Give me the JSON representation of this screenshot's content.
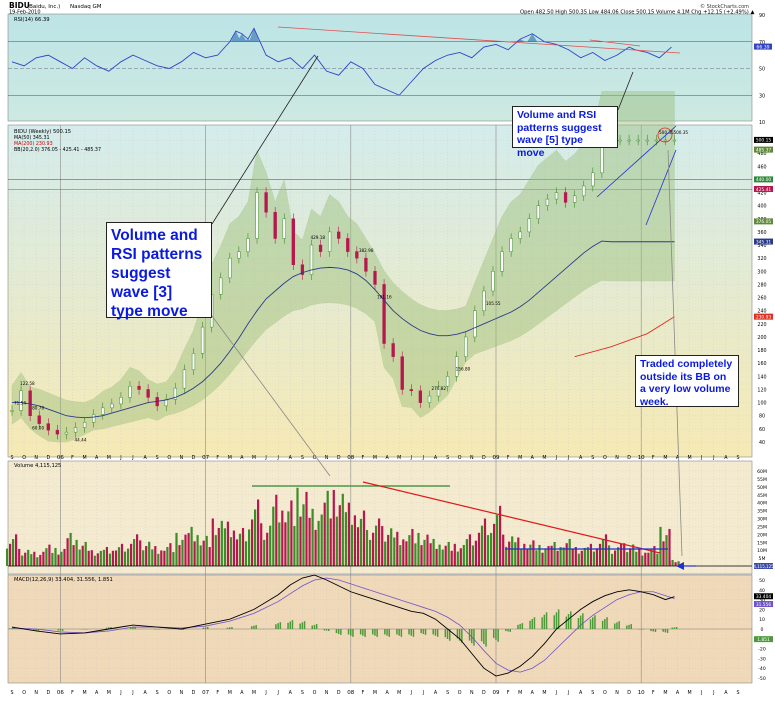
{
  "header": {
    "symbol": "BIDU",
    "company": "(Baidu, Inc.)",
    "exchange": "Nasdaq GM",
    "date": "19-Feb-2010",
    "quote": "Open 482.50  High 500.35  Low 484.06  Close 500.15  Volume 4.1M  Chg +12.15 (+2.49%) ▲",
    "watermark": "© StockCharts.com"
  },
  "colors": {
    "rsi_bg": "#b9e2e4",
    "price_bg_top": "#d4ecec",
    "price_bg_bottom": "#f6e9b4",
    "vol_bg": "#f3ead0",
    "macd_bg": "#f0d9b9",
    "up": "#3c8c28",
    "down": "#b6184e",
    "annotation_text": "#0a1adf"
  },
  "annotations": {
    "wave5": "Volume and RSI patterns suggest wave [5] type move",
    "wave3": "Volume and RSI patterns suggest wave [3] type move",
    "bb": "Traded completely outside its BB on a very low volume week."
  },
  "chart_data": [
    {
      "type": "line",
      "panel": "rsi",
      "legend": "RSI(14) 66.39",
      "y_ticks": [
        90,
        70,
        50,
        30,
        10
      ],
      "levels": [
        70,
        30
      ],
      "last_value_label": "66.39",
      "x_weeks": [
        0,
        4,
        8,
        12,
        16,
        20,
        24,
        28,
        32,
        36,
        40,
        44,
        48,
        52,
        56,
        60,
        64,
        68,
        72,
        74,
        76,
        78,
        80,
        84,
        88,
        92,
        96,
        100,
        104,
        108,
        112,
        116,
        120,
        124,
        128,
        132,
        136,
        140,
        144,
        148,
        152,
        156,
        160,
        164,
        168,
        172,
        176,
        180,
        184,
        188,
        192,
        196,
        200,
        204,
        206,
        210,
        214,
        218
      ],
      "values": [
        55,
        52,
        58,
        60,
        55,
        50,
        58,
        52,
        48,
        55,
        60,
        56,
        52,
        50,
        55,
        62,
        58,
        60,
        70,
        78,
        76,
        72,
        80,
        60,
        55,
        58,
        50,
        60,
        48,
        45,
        55,
        50,
        38,
        34,
        30,
        40,
        50,
        56,
        60,
        62,
        58,
        66,
        68,
        64,
        72,
        76,
        70,
        68,
        64,
        58,
        62,
        56,
        60,
        66,
        64,
        62,
        58,
        66
      ]
    },
    {
      "type": "line",
      "panel": "price",
      "legend": [
        "BIDU (Weekly) 500.15",
        "MA(50) 345.31",
        "MA(200) 230.93",
        "BB(20,2.0) 376.05 - 425.41 - 485.37"
      ],
      "y_ticks": [
        500,
        480,
        460,
        440,
        420,
        400,
        380,
        360,
        340,
        320,
        300,
        280,
        260,
        240,
        220,
        200,
        180,
        160,
        140,
        120,
        100,
        80,
        60,
        40
      ],
      "right_labels": [
        "500.15",
        "485.37",
        "440.00",
        "425.41",
        "376.05",
        "345.31",
        "230.93"
      ],
      "point_labels": [
        {
          "week": 0,
          "text": "71.54"
        },
        {
          "week": 2,
          "text": "122.58"
        },
        {
          "week": 6,
          "text": "80.70"
        },
        {
          "week": 6,
          "text": "60.00"
        },
        {
          "week": 20,
          "text": "44.44"
        },
        {
          "week": 98,
          "text": "429.18"
        },
        {
          "week": 114,
          "text": "382.98"
        },
        {
          "week": 120,
          "text": "191.16"
        },
        {
          "week": 138,
          "text": "274.82"
        },
        {
          "week": 146,
          "text": "156.80"
        },
        {
          "week": 156,
          "text": "105.55"
        },
        {
          "week": 218,
          "text": "500.35"
        }
      ],
      "x_weeks": [
        0,
        3,
        6,
        9,
        12,
        15,
        18,
        21,
        24,
        27,
        30,
        33,
        36,
        39,
        42,
        45,
        48,
        51,
        54,
        57,
        60,
        63,
        66,
        69,
        72,
        75,
        78,
        81,
        84,
        87,
        90,
        93,
        96,
        99,
        102,
        105,
        108,
        111,
        114,
        117,
        120,
        123,
        126,
        129,
        132,
        135,
        138,
        141,
        144,
        147,
        150,
        153,
        156,
        159,
        162,
        165,
        168,
        171,
        174,
        177,
        180,
        183,
        186,
        189,
        192,
        195,
        198,
        201,
        204,
        207,
        210,
        213,
        216,
        219
      ],
      "close": [
        88,
        118,
        80,
        68,
        58,
        52,
        55,
        62,
        70,
        82,
        92,
        98,
        108,
        125,
        120,
        108,
        95,
        105,
        122,
        150,
        175,
        215,
        265,
        290,
        320,
        330,
        350,
        420,
        390,
        350,
        380,
        310,
        295,
        340,
        330,
        360,
        350,
        330,
        320,
        300,
        280,
        190,
        170,
        120,
        118,
        100,
        110,
        125,
        140,
        170,
        200,
        240,
        270,
        300,
        330,
        350,
        360,
        380,
        400,
        410,
        420,
        405,
        415,
        430,
        450,
        500,
        500,
        500,
        500,
        500,
        500,
        500,
        500,
        500
      ],
      "close_note": "illustrative",
      "ma50": [
        100,
        100,
        98,
        95,
        90,
        85,
        80,
        78,
        77,
        78,
        80,
        84,
        88,
        92,
        96,
        100,
        102,
        104,
        108,
        114,
        122,
        132,
        145,
        160,
        178,
        198,
        220,
        240,
        258,
        270,
        282,
        292,
        298,
        302,
        305,
        306,
        305,
        302,
        296,
        286,
        272,
        256,
        240,
        228,
        218,
        210,
        205,
        202,
        202,
        204,
        208,
        214,
        220,
        226,
        232,
        238,
        246,
        256,
        268,
        280,
        292,
        304,
        316,
        328,
        338,
        346,
        345,
        345,
        345,
        345,
        345,
        345,
        345,
        345
      ],
      "ma200_weeks": [
        186,
        198,
        210,
        219
      ],
      "ma200": [
        170,
        185,
        205,
        231
      ]
    },
    {
      "type": "bar",
      "panel": "volume",
      "legend": "Volume 4,115,125",
      "y_ticks": [
        "60M",
        "55M",
        "50M",
        "45M",
        "40M",
        "35M",
        "30M",
        "25M",
        "20M",
        "15M",
        "10M",
        "5M"
      ],
      "last_value_label": "4,115,125",
      "x_weeks": [
        0,
        4,
        8,
        12,
        16,
        20,
        24,
        28,
        32,
        36,
        40,
        44,
        48,
        52,
        56,
        60,
        64,
        68,
        72,
        76,
        80,
        84,
        88,
        92,
        96,
        100,
        104,
        108,
        112,
        116,
        120,
        124,
        128,
        132,
        136,
        140,
        144,
        148,
        152,
        156,
        160,
        164,
        168,
        172,
        176,
        180,
        184,
        188,
        192,
        196,
        200,
        204,
        208,
        212,
        216,
        219
      ],
      "volume_m": [
        20,
        12,
        10,
        15,
        12,
        22,
        16,
        10,
        12,
        14,
        20,
        18,
        14,
        16,
        22,
        26,
        20,
        30,
        28,
        24,
        42,
        30,
        50,
        46,
        52,
        38,
        50,
        48,
        40,
        35,
        30,
        28,
        24,
        26,
        22,
        18,
        16,
        14,
        20,
        30,
        38,
        22,
        20,
        18,
        14,
        16,
        18,
        12,
        14,
        20,
        14,
        16,
        12,
        14,
        26,
        4
      ],
      "volume_note": "illustrative"
    },
    {
      "type": "line",
      "panel": "macd",
      "legend": "MACD(12,26,9) 33.404, 31.556, 1.851",
      "y_ticks": [
        50,
        40,
        30,
        20,
        10,
        0,
        -10,
        -20,
        -30,
        -40,
        -50
      ],
      "right_labels": [
        "33.404",
        "31.556",
        "1.851"
      ],
      "x_weeks": [
        0,
        8,
        16,
        24,
        32,
        40,
        48,
        56,
        64,
        72,
        80,
        88,
        92,
        96,
        100,
        104,
        108,
        112,
        116,
        120,
        124,
        128,
        132,
        136,
        140,
        144,
        148,
        152,
        156,
        160,
        164,
        168,
        172,
        176,
        180,
        184,
        188,
        192,
        196,
        200,
        204,
        208,
        212,
        216,
        219
      ],
      "macd": [
        2,
        -2,
        -5,
        -4,
        0,
        4,
        2,
        0,
        5,
        10,
        20,
        35,
        45,
        52,
        55,
        50,
        44,
        38,
        34,
        30,
        26,
        22,
        18,
        16,
        10,
        0,
        -10,
        -25,
        -40,
        -48,
        -45,
        -38,
        -28,
        -15,
        0,
        10,
        20,
        28,
        34,
        38,
        40,
        38,
        35,
        30,
        33
      ],
      "signal": [
        1,
        0,
        -3,
        -4,
        -2,
        2,
        2,
        1,
        3,
        8,
        16,
        28,
        36,
        44,
        50,
        52,
        50,
        46,
        42,
        38,
        34,
        30,
        26,
        22,
        18,
        12,
        4,
        -8,
        -22,
        -35,
        -42,
        -44,
        -40,
        -32,
        -20,
        -8,
        4,
        14,
        22,
        30,
        35,
        38,
        38,
        34,
        31
      ],
      "histogram": [
        1,
        -2,
        -2,
        0,
        2,
        2,
        0,
        -1,
        2,
        2,
        4,
        7,
        9,
        8,
        5,
        -2,
        -6,
        -8,
        -8,
        -8,
        -8,
        -8,
        -8,
        -6,
        -8,
        -12,
        -14,
        -17,
        -18,
        -13,
        -3,
        6,
        12,
        17,
        20,
        18,
        16,
        14,
        12,
        8,
        5,
        0,
        -3,
        -4,
        2
      ],
      "macd_note": "illustrative"
    }
  ],
  "x_axis": {
    "month_labels": [
      "S",
      "O",
      "N",
      "D",
      "06",
      "F",
      "M",
      "A",
      "M",
      "J",
      "J",
      "A",
      "S",
      "O",
      "N",
      "D",
      "07",
      "F",
      "M",
      "A",
      "M",
      "J",
      "J",
      "A",
      "S",
      "O",
      "N",
      "D",
      "08",
      "F",
      "M",
      "A",
      "M",
      "J",
      "J",
      "A",
      "S",
      "O",
      "N",
      "D",
      "09",
      "F",
      "M",
      "A",
      "M",
      "J",
      "J",
      "A",
      "S",
      "O",
      "N",
      "D",
      "10",
      "F",
      "M",
      "A",
      "M",
      "J",
      "J",
      "A",
      "S"
    ]
  }
}
